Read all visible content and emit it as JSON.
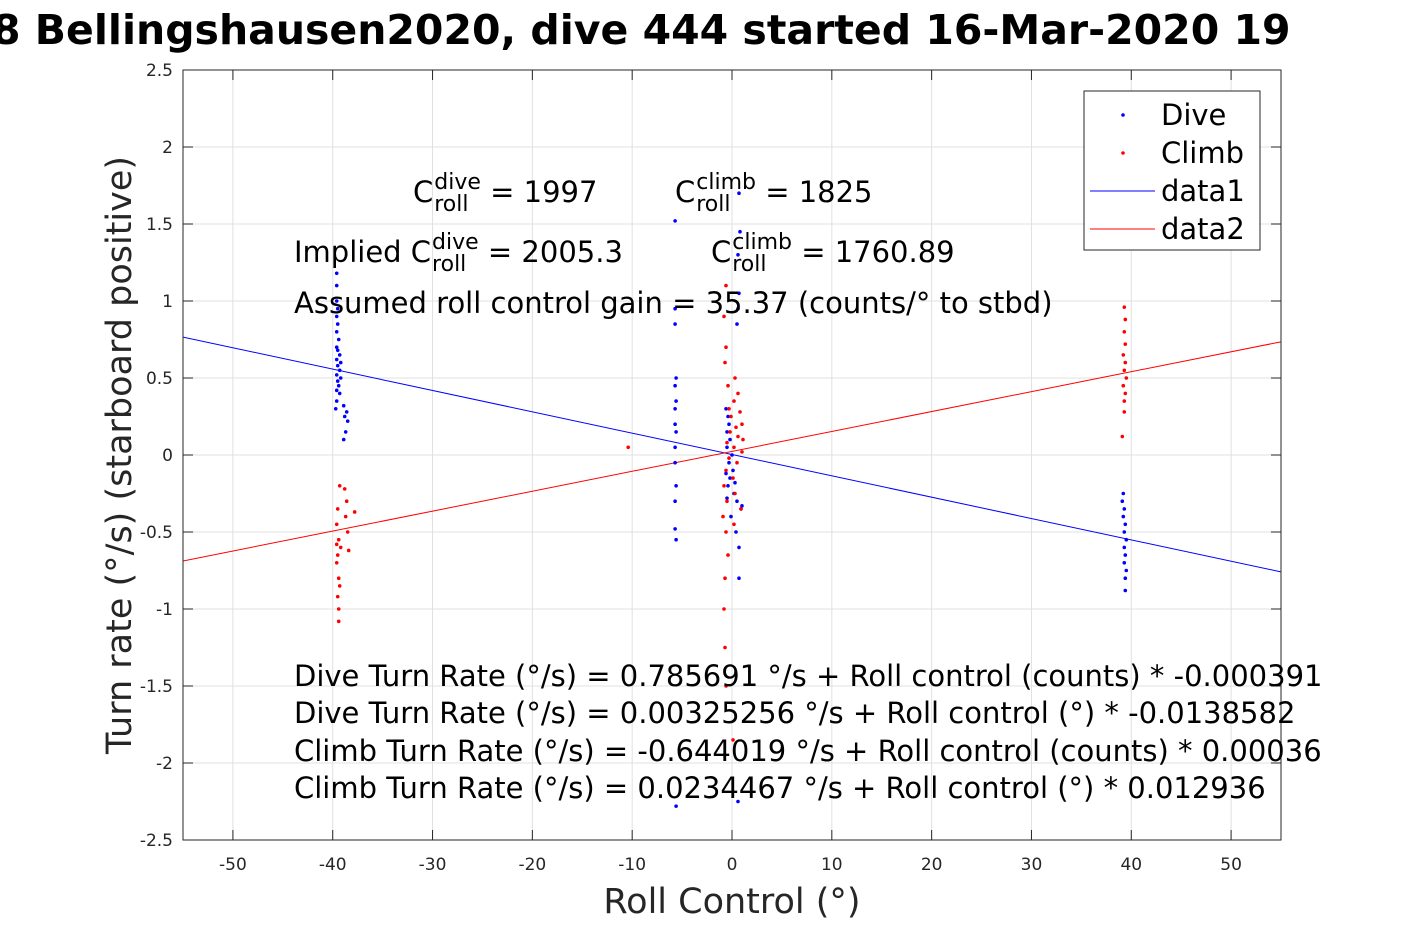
{
  "chart_data": {
    "type": "scatter",
    "title": "8 Bellingshausen2020, dive 444 started 16-Mar-2020 19",
    "xlabel": "Roll Control (°)",
    "ylabel": "Turn rate (°/s) (starboard positive)",
    "xlim": [
      -55,
      55
    ],
    "ylim": [
      -2.5,
      2.5
    ],
    "xticks": [
      -50,
      -40,
      -30,
      -20,
      -10,
      0,
      10,
      20,
      30,
      40,
      50
    ],
    "yticks": [
      2.5,
      2,
      1.5,
      1,
      0.5,
      0,
      -0.5,
      -1,
      -1.5,
      -2,
      -2.5
    ],
    "grid": true,
    "legend_position": "top-right",
    "legend": [
      "Dive",
      "Climb",
      "data1",
      "data2"
    ],
    "colors": {
      "dive": "#0000ff",
      "climb": "#ff0000"
    },
    "series": [
      {
        "name": "Dive",
        "kind": "points",
        "points": [
          [
            -39.6,
            1.18
          ],
          [
            -39.6,
            1.1
          ],
          [
            -39.6,
            1.0
          ],
          [
            -39.5,
            0.95
          ],
          [
            -39.6,
            0.9
          ],
          [
            -39.5,
            0.85
          ],
          [
            -39.6,
            0.8
          ],
          [
            -39.4,
            0.75
          ],
          [
            -39.6,
            0.7
          ],
          [
            -39.5,
            0.68
          ],
          [
            -39.3,
            0.65
          ],
          [
            -39.6,
            0.62
          ],
          [
            -39.2,
            0.6
          ],
          [
            -39.5,
            0.58
          ],
          [
            -39.3,
            0.55
          ],
          [
            -39.6,
            0.52
          ],
          [
            -39.2,
            0.5
          ],
          [
            -39.5,
            0.48
          ],
          [
            -39.4,
            0.45
          ],
          [
            -39.6,
            0.42
          ],
          [
            -39.3,
            0.4
          ],
          [
            -39.6,
            0.35
          ],
          [
            -39.7,
            0.3
          ],
          [
            -38.9,
            0.32
          ],
          [
            -38.6,
            0.28
          ],
          [
            -38.8,
            0.25
          ],
          [
            -38.5,
            0.22
          ],
          [
            -38.7,
            0.15
          ],
          [
            -38.9,
            0.1
          ],
          [
            -5.7,
            1.52
          ],
          [
            -5.7,
            0.95
          ],
          [
            -5.7,
            0.85
          ],
          [
            -5.6,
            0.5
          ],
          [
            -5.7,
            0.45
          ],
          [
            -5.6,
            0.35
          ],
          [
            -5.7,
            0.3
          ],
          [
            -5.7,
            0.2
          ],
          [
            -5.6,
            0.15
          ],
          [
            -5.7,
            0.05
          ],
          [
            -5.7,
            -0.05
          ],
          [
            -5.6,
            -0.2
          ],
          [
            -5.7,
            -0.3
          ],
          [
            -5.7,
            -0.48
          ],
          [
            -5.6,
            -0.55
          ],
          [
            -5.6,
            -2.28
          ],
          [
            0.7,
            1.7
          ],
          [
            0.8,
            1.45
          ],
          [
            0.6,
            1.3
          ],
          [
            0.7,
            1.05
          ],
          [
            0.6,
            0.95
          ],
          [
            0.5,
            0.85
          ],
          [
            -0.6,
            0.3
          ],
          [
            -0.4,
            0.25
          ],
          [
            -0.3,
            0.2
          ],
          [
            -0.5,
            0.15
          ],
          [
            -0.2,
            0.1
          ],
          [
            -0.5,
            0.05
          ],
          [
            0,
            0
          ],
          [
            -0.3,
            -0.05
          ],
          [
            0.1,
            -0.1
          ],
          [
            -0.6,
            -0.12
          ],
          [
            -0.2,
            -0.15
          ],
          [
            0.3,
            -0.18
          ],
          [
            -0.4,
            -0.2
          ],
          [
            0.2,
            -0.25
          ],
          [
            -0.5,
            -0.28
          ],
          [
            0.5,
            -0.3
          ],
          [
            0.9,
            -0.35
          ],
          [
            1.0,
            -0.33
          ],
          [
            -0.1,
            -0.4
          ],
          [
            0.4,
            -0.5
          ],
          [
            0.7,
            -0.6
          ],
          [
            0.7,
            -0.8
          ],
          [
            0.6,
            -2.25
          ],
          [
            39.2,
            -0.25
          ],
          [
            39.1,
            -0.3
          ],
          [
            39.3,
            -0.35
          ],
          [
            39.2,
            -0.4
          ],
          [
            39.4,
            -0.45
          ],
          [
            39.3,
            -0.5
          ],
          [
            39.5,
            -0.55
          ],
          [
            39.3,
            -0.6
          ],
          [
            39.4,
            -0.65
          ],
          [
            39.3,
            -0.7
          ],
          [
            39.5,
            -0.75
          ],
          [
            39.4,
            -0.8
          ],
          [
            39.4,
            -0.88
          ]
        ]
      },
      {
        "name": "Climb",
        "kind": "points",
        "points": [
          [
            -39.3,
            -0.2
          ],
          [
            -38.8,
            -0.22
          ],
          [
            -38.6,
            -0.3
          ],
          [
            -39.5,
            -0.35
          ],
          [
            -38.7,
            -0.4
          ],
          [
            -39.6,
            -0.45
          ],
          [
            -38.5,
            -0.5
          ],
          [
            -39.4,
            -0.55
          ],
          [
            -39.6,
            -0.58
          ],
          [
            -39.2,
            -0.6
          ],
          [
            -38.4,
            -0.62
          ],
          [
            -39.5,
            -0.65
          ],
          [
            -39.6,
            -0.7
          ],
          [
            -39.4,
            -0.8
          ],
          [
            -39.3,
            -0.85
          ],
          [
            -39.5,
            -0.92
          ],
          [
            -39.4,
            -1.0
          ],
          [
            -39.4,
            -1.08
          ],
          [
            -37.8,
            -0.37
          ],
          [
            -10.4,
            0.05
          ],
          [
            -0.6,
            1.1
          ],
          [
            -0.8,
            0.9
          ],
          [
            -0.6,
            0.7
          ],
          [
            -0.7,
            0.6
          ],
          [
            0.3,
            0.5
          ],
          [
            -0.4,
            0.45
          ],
          [
            0.6,
            0.4
          ],
          [
            0.2,
            0.35
          ],
          [
            -0.3,
            0.3
          ],
          [
            0.8,
            0.28
          ],
          [
            -0.1,
            0.25
          ],
          [
            1.0,
            0.2
          ],
          [
            0.4,
            0.18
          ],
          [
            -0.2,
            0.15
          ],
          [
            0.6,
            0.12
          ],
          [
            1.1,
            0.1
          ],
          [
            -0.5,
            0.08
          ],
          [
            0.2,
            0.05
          ],
          [
            1.0,
            0.02
          ],
          [
            -0.3,
            -0.02
          ],
          [
            0.5,
            -0.05
          ],
          [
            -0.6,
            -0.1
          ],
          [
            0.1,
            -0.15
          ],
          [
            -0.8,
            -0.2
          ],
          [
            0.3,
            -0.25
          ],
          [
            -0.5,
            -0.3
          ],
          [
            0.9,
            -0.35
          ],
          [
            -0.9,
            -0.4
          ],
          [
            0.2,
            -0.45
          ],
          [
            -0.6,
            -0.5
          ],
          [
            -0.4,
            -0.65
          ],
          [
            -0.7,
            -0.8
          ],
          [
            -0.8,
            -1.0
          ],
          [
            -0.7,
            -1.25
          ],
          [
            -0.6,
            -1.5
          ],
          [
            0.1,
            -1.85
          ],
          [
            39.3,
            0.96
          ],
          [
            39.4,
            0.88
          ],
          [
            39.3,
            0.8
          ],
          [
            39.4,
            0.72
          ],
          [
            39.2,
            0.65
          ],
          [
            39.4,
            0.6
          ],
          [
            39.3,
            0.55
          ],
          [
            39.5,
            0.5
          ],
          [
            39.2,
            0.45
          ],
          [
            39.4,
            0.4
          ],
          [
            39.3,
            0.35
          ],
          [
            39.3,
            0.28
          ],
          [
            39.1,
            0.12
          ]
        ]
      },
      {
        "name": "data1",
        "kind": "line",
        "intercept": 0.00325256,
        "slope": -0.0138582
      },
      {
        "name": "data2",
        "kind": "line",
        "intercept": 0.0234467,
        "slope": 0.012936
      }
    ]
  },
  "annotations": {
    "c_dive": {
      "pre": "C",
      "sup": "dive",
      "sub": "roll",
      "post": "= 1997"
    },
    "c_climb": {
      "pre": "C",
      "sup": "climb",
      "sub": "roll",
      "post": "= 1825"
    },
    "implied_dive": {
      "pre": "Implied C",
      "sup": "dive",
      "sub": "roll",
      "post": "= 2005.3"
    },
    "implied_climb": {
      "pre": "C",
      "sup": "climb",
      "sub": "roll",
      "post": "= 1760.89"
    },
    "gain": "Assumed roll control gain = 35.37 (counts/° to stbd)",
    "eq1": "Dive Turn Rate (°/s) = 0.785691 °/s + Roll control (counts) * -0.000391",
    "eq2": "Dive Turn Rate (°/s) = 0.00325256 °/s + Roll control (°) * -0.0138582",
    "eq3": "Climb Turn Rate (°/s) = -0.644019 °/s + Roll control (counts) * 0.00036",
    "eq4": "Climb Turn Rate (°/s) = 0.0234467 °/s + Roll control (°) * 0.012936"
  }
}
